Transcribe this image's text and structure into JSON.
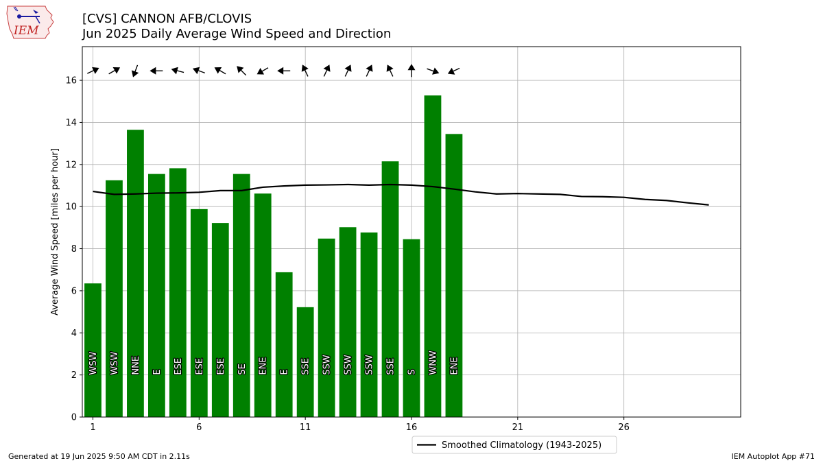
{
  "header": {
    "logo_text": "IEM",
    "title": "[CVS] CANNON AFB/CLOVIS",
    "subtitle": "Jun 2025 Daily Average Wind Speed and Direction"
  },
  "footer": {
    "left": "Generated at 19 Jun 2025 9:50 AM CDT in 2.11s",
    "right": "IEM Autoplot App #71"
  },
  "colors": {
    "bar": "#008000",
    "climatology": "#000000",
    "grid": "#b0b0b0"
  },
  "chart_data": {
    "type": "bar",
    "ylabel": "Average Wind Speed [miles per hour]",
    "xlim": [
      0.5,
      31.5
    ],
    "ylim": [
      0,
      17.6
    ],
    "xticks": [
      1,
      6,
      11,
      16,
      21,
      26
    ],
    "yticks": [
      0,
      2,
      4,
      6,
      8,
      10,
      12,
      14,
      16
    ],
    "grid": true,
    "legend_position": "bottom-center, below plot",
    "series": [
      {
        "type": "bar",
        "days": [
          1,
          2,
          3,
          4,
          5,
          6,
          7,
          8,
          9,
          10,
          11,
          12,
          13,
          14,
          15,
          16,
          17,
          18
        ],
        "values": [
          6.35,
          11.25,
          13.65,
          11.55,
          11.82,
          9.88,
          9.22,
          11.55,
          10.62,
          6.88,
          5.22,
          8.48,
          9.02,
          8.77,
          12.15,
          8.45,
          15.28,
          13.45
        ],
        "direction_labels": [
          "WSW",
          "WSW",
          "NNE",
          "E",
          "ESE",
          "ESE",
          "ESE",
          "SE",
          "ENE",
          "E",
          "SSE",
          "SSW",
          "SSW",
          "SSW",
          "SSE",
          "S",
          "WNW",
          "ENE"
        ],
        "wind_from_degrees": [
          245,
          240,
          20,
          90,
          105,
          110,
          120,
          135,
          60,
          90,
          155,
          205,
          205,
          205,
          155,
          180,
          290,
          65
        ]
      },
      {
        "type": "line",
        "name": "Smoothed Climatology (1943-2025)",
        "x": [
          1,
          2,
          3,
          4,
          5,
          6,
          7,
          8,
          9,
          10,
          11,
          12,
          13,
          14,
          15,
          16,
          17,
          18,
          19,
          20,
          21,
          22,
          23,
          24,
          25,
          26,
          27,
          28,
          29,
          30
        ],
        "values": [
          10.72,
          10.58,
          10.6,
          10.64,
          10.65,
          10.68,
          10.76,
          10.76,
          10.92,
          10.98,
          11.02,
          11.03,
          11.05,
          11.02,
          11.05,
          11.02,
          10.95,
          10.83,
          10.7,
          10.6,
          10.62,
          10.6,
          10.58,
          10.48,
          10.47,
          10.44,
          10.34,
          10.29,
          10.18,
          10.08
        ]
      }
    ]
  }
}
